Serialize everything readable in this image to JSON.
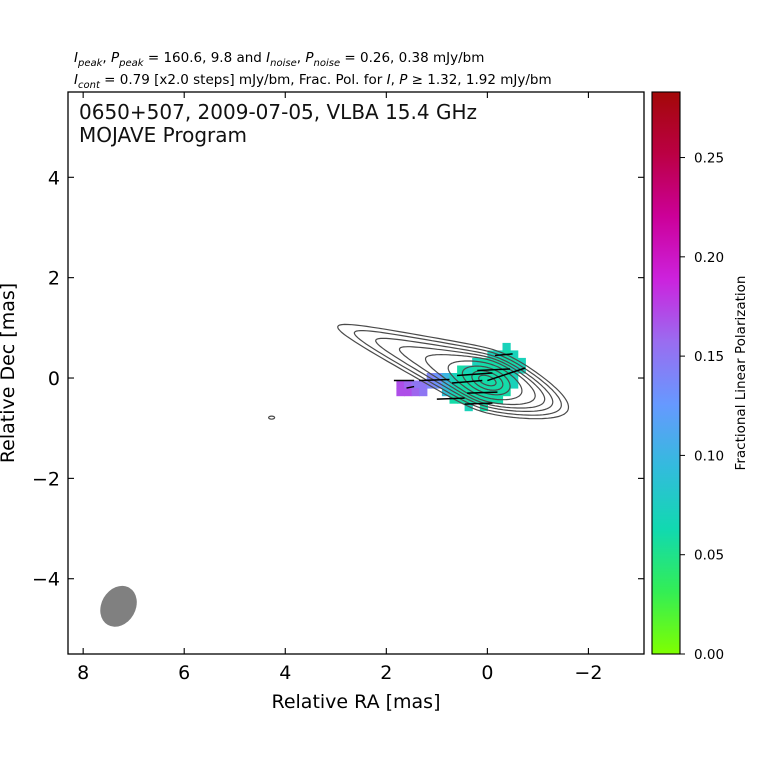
{
  "header": {
    "line1": {
      "i_peak": "I",
      "i_peak_sub": "peak",
      "sep1": ", ",
      "p_peak": "P",
      "p_peak_sub": "peak",
      "mid": " = 160.6, 9.8 and ",
      "i_noise": "I",
      "i_noise_sub": "noise",
      "sep2": ", ",
      "p_noise": "P",
      "p_noise_sub": "noise",
      "tail": " = 0.26, 0.38 mJy/bm"
    },
    "line2": {
      "i_cont": "I",
      "i_cont_sub": "cont",
      "mid": " = 0.79 [x2.0 steps] mJy/bm, Frac. Pol. for ",
      "i": "I",
      "sep": ", ",
      "p": "P",
      "tail": " ≥  1.32, 1.92 mJy/bm"
    }
  },
  "plot_title": {
    "line1": "0650+507, 2009-07-05, VLBA 15.4 GHz",
    "line2": "MOJAVE Program"
  },
  "colors": {
    "contour": "#4a4a4a",
    "beam": "#808080",
    "evpa": "#000000",
    "colormap": [
      "#7fff00",
      "#33ee55",
      "#11d9b0",
      "#33bbdd",
      "#6699ff",
      "#9a6cf0",
      "#cc22dd",
      "#cc0099",
      "#bb0044",
      "#a30808"
    ]
  },
  "chart_data": {
    "type": "heatmap",
    "subtype": "radio polarization map (contours + fractional polarization color + EVPA ticks)",
    "xlabel": "Relative RA [mas]",
    "ylabel": "Relative Dec [mas]",
    "xlim": [
      8.3,
      -3.1
    ],
    "ylim": [
      -5.5,
      5.7
    ],
    "x_ticks": [
      8,
      6,
      4,
      2,
      0,
      -2
    ],
    "x_tick_labels": [
      "8",
      "6",
      "4",
      "2",
      "0",
      "−2"
    ],
    "y_ticks": [
      -4,
      -2,
      0,
      2,
      4
    ],
    "y_tick_labels": [
      "−4",
      "−2",
      "0",
      "2",
      "4"
    ],
    "grid": false,
    "colorbar": {
      "label": "Fractional Linear Polarization",
      "range": [
        0.0,
        0.283
      ],
      "ticks": [
        0.0,
        0.05,
        0.1,
        0.15,
        0.2,
        0.25
      ],
      "tick_labels": [
        "0.00",
        "0.05",
        "0.10",
        "0.15",
        "0.20",
        "0.25"
      ],
      "placement": "right"
    },
    "beam": {
      "x": 7.3,
      "y": -4.55,
      "major_mas": 0.85,
      "minor_mas": 0.68,
      "pa_deg": -60
    },
    "contours": [
      {
        "cx": 0.0,
        "cy": -0.05,
        "rx": 1.15,
        "ry": 0.62,
        "angle_deg": 20,
        "west_ext": 0.55,
        "east_ext": 2.0
      },
      {
        "cx": 0.0,
        "cy": -0.05,
        "rx": 1.05,
        "ry": 0.56,
        "angle_deg": 20,
        "west_ext": 0.5,
        "east_ext": 1.75
      },
      {
        "cx": 0.0,
        "cy": -0.05,
        "rx": 0.95,
        "ry": 0.5,
        "angle_deg": 20,
        "west_ext": 0.42,
        "east_ext": 1.4
      },
      {
        "cx": 0.0,
        "cy": -0.05,
        "rx": 0.85,
        "ry": 0.45,
        "angle_deg": 20,
        "west_ext": 0.35,
        "east_ext": 1.0
      },
      {
        "cx": 0.0,
        "cy": -0.05,
        "rx": 0.75,
        "ry": 0.4,
        "angle_deg": 20,
        "west_ext": 0.25,
        "east_ext": 0.55
      },
      {
        "cx": 0.0,
        "cy": -0.05,
        "rx": 0.62,
        "ry": 0.33,
        "angle_deg": 20,
        "west_ext": 0.1,
        "east_ext": 0.2
      },
      {
        "cx": 0.0,
        "cy": -0.05,
        "rx": 0.47,
        "ry": 0.25,
        "angle_deg": 20,
        "west_ext": 0.0,
        "east_ext": 0.05
      },
      {
        "cx": 0.0,
        "cy": -0.05,
        "rx": 0.32,
        "ry": 0.17,
        "angle_deg": 20,
        "west_ext": 0.0,
        "east_ext": 0.0
      },
      {
        "cx": 0.0,
        "cy": -0.05,
        "rx": 0.18,
        "ry": 0.09,
        "angle_deg": 20,
        "west_ext": 0.0,
        "east_ext": 0.0
      }
    ],
    "isolated_contour": {
      "x": 4.27,
      "y": -0.79,
      "rx": 0.06,
      "ry": 0.03
    },
    "polarization": {
      "pixel_size_mas": 0.15,
      "cells": [
        [
          1.725,
          -0.275,
          0.17
        ],
        [
          1.575,
          -0.275,
          0.17
        ],
        [
          1.725,
          -0.125,
          0.17
        ],
        [
          1.575,
          -0.125,
          0.16
        ],
        [
          1.425,
          -0.125,
          0.15
        ],
        [
          1.275,
          -0.125,
          0.15
        ],
        [
          1.425,
          -0.275,
          0.16
        ],
        [
          1.275,
          -0.275,
          0.15
        ],
        [
          1.125,
          0.025,
          0.14
        ],
        [
          1.125,
          -0.125,
          0.14
        ],
        [
          0.975,
          -0.125,
          0.13
        ],
        [
          0.975,
          0.025,
          0.13
        ],
        [
          0.825,
          -0.125,
          0.1
        ],
        [
          0.825,
          0.025,
          0.1
        ],
        [
          0.825,
          -0.275,
          0.09
        ],
        [
          0.675,
          0.025,
          0.07
        ],
        [
          0.675,
          -0.125,
          0.07
        ],
        [
          0.675,
          -0.275,
          0.07
        ],
        [
          0.675,
          -0.425,
          0.06
        ],
        [
          0.525,
          0.175,
          0.06
        ],
        [
          0.525,
          0.025,
          0.06
        ],
        [
          0.525,
          -0.125,
          0.06
        ],
        [
          0.525,
          -0.275,
          0.06
        ],
        [
          0.525,
          -0.425,
          0.06
        ],
        [
          0.375,
          0.175,
          0.07
        ],
        [
          0.375,
          0.025,
          0.06
        ],
        [
          0.375,
          -0.125,
          0.06
        ],
        [
          0.375,
          -0.275,
          0.06
        ],
        [
          0.375,
          -0.425,
          0.06
        ],
        [
          0.375,
          -0.575,
          0.07
        ],
        [
          0.225,
          0.325,
          0.07
        ],
        [
          0.225,
          0.175,
          0.06
        ],
        [
          0.225,
          0.025,
          0.06
        ],
        [
          0.225,
          -0.125,
          0.06
        ],
        [
          0.225,
          -0.275,
          0.06
        ],
        [
          0.225,
          -0.425,
          0.06
        ],
        [
          0.075,
          0.325,
          0.06
        ],
        [
          0.075,
          0.175,
          0.06
        ],
        [
          0.075,
          0.025,
          0.06
        ],
        [
          0.075,
          -0.125,
          0.06
        ],
        [
          0.075,
          -0.275,
          0.06
        ],
        [
          0.075,
          -0.425,
          0.06
        ],
        [
          0.075,
          -0.575,
          0.06
        ],
        [
          -0.075,
          0.475,
          0.07
        ],
        [
          -0.075,
          0.325,
          0.06
        ],
        [
          -0.075,
          0.175,
          0.06
        ],
        [
          -0.075,
          0.025,
          0.06
        ],
        [
          -0.075,
          -0.125,
          0.06
        ],
        [
          -0.075,
          -0.275,
          0.06
        ],
        [
          -0.075,
          -0.425,
          0.06
        ],
        [
          -0.225,
          0.475,
          0.07
        ],
        [
          -0.225,
          0.325,
          0.06
        ],
        [
          -0.225,
          0.175,
          0.06
        ],
        [
          -0.225,
          0.025,
          0.06
        ],
        [
          -0.225,
          -0.125,
          0.06
        ],
        [
          -0.225,
          -0.275,
          0.06
        ],
        [
          -0.225,
          -0.425,
          0.06
        ],
        [
          -0.375,
          0.625,
          0.07
        ],
        [
          -0.375,
          0.475,
          0.06
        ],
        [
          -0.375,
          0.325,
          0.06
        ],
        [
          -0.375,
          0.175,
          0.06
        ],
        [
          -0.375,
          0.025,
          0.06
        ],
        [
          -0.375,
          -0.125,
          0.06
        ],
        [
          -0.375,
          -0.275,
          0.06
        ],
        [
          -0.525,
          0.475,
          0.07
        ],
        [
          -0.525,
          0.325,
          0.06
        ],
        [
          -0.525,
          0.175,
          0.07
        ],
        [
          -0.525,
          0.025,
          0.07
        ],
        [
          -0.525,
          -0.125,
          0.07
        ],
        [
          -0.675,
          0.325,
          0.07
        ],
        [
          -0.675,
          0.175,
          0.07
        ]
      ],
      "evpa_ticks": [
        [
          1.85,
          -0.05,
          1.45,
          -0.05
        ],
        [
          1.6,
          -0.2,
          1.45,
          -0.17
        ],
        [
          1.35,
          -0.05,
          0.75,
          -0.03
        ],
        [
          1.0,
          -0.42,
          0.45,
          -0.4
        ],
        [
          0.7,
          -0.1,
          0.1,
          -0.05
        ],
        [
          0.4,
          -0.3,
          -0.2,
          -0.28
        ],
        [
          0.6,
          0.05,
          -0.1,
          0.1
        ],
        [
          0.2,
          0.15,
          -0.45,
          0.18
        ],
        [
          0.0,
          -0.05,
          -0.75,
          0.2
        ],
        [
          -0.15,
          0.45,
          -0.5,
          0.48
        ],
        [
          0.45,
          -0.52,
          -0.1,
          -0.5
        ]
      ]
    }
  }
}
